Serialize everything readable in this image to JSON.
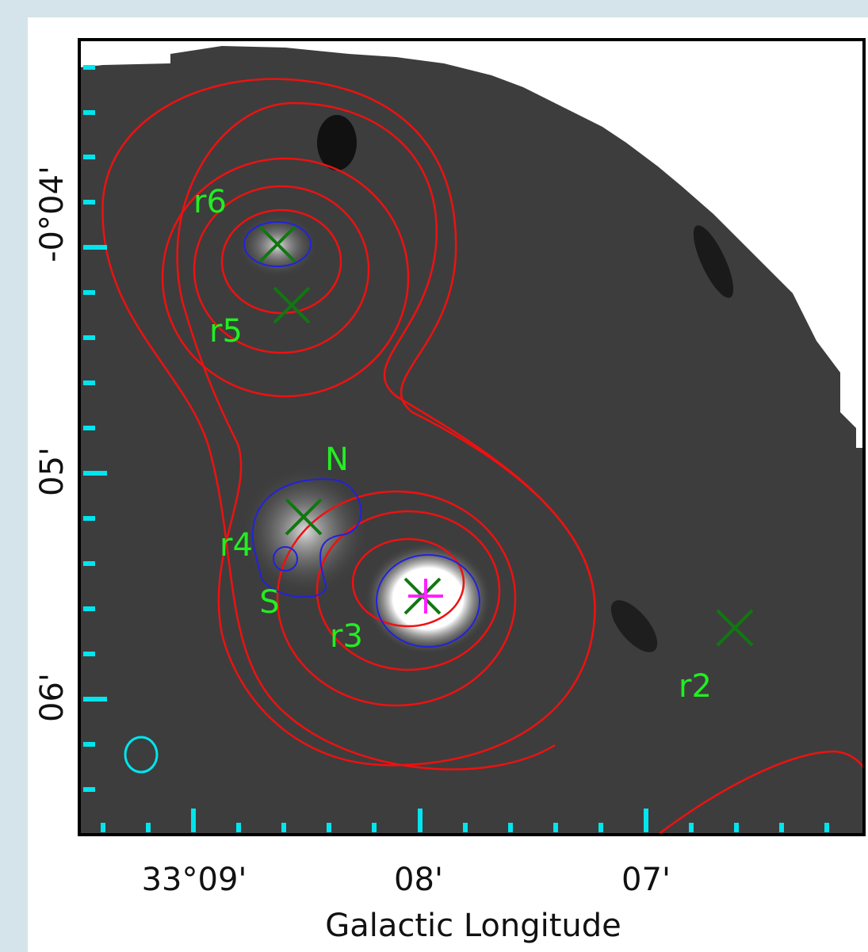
{
  "x_axis": {
    "label": "Galactic Longitude",
    "ticks": [
      "33°09'",
      "08'",
      "07'"
    ]
  },
  "y_axis": {
    "ticks": [
      "-0°04'",
      "05'",
      "06'"
    ]
  },
  "sources": [
    "r6",
    "r5",
    "N",
    "r4",
    "S",
    "r3",
    "r2"
  ]
}
